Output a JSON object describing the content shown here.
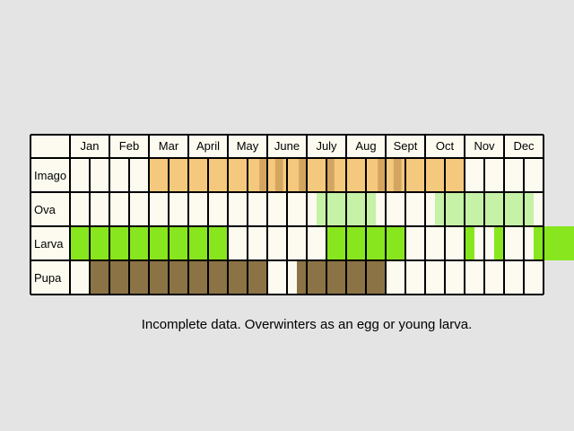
{
  "chart_data": {
    "type": "table",
    "months": [
      "Jan",
      "Feb",
      "Mar",
      "April",
      "May",
      "June",
      "July",
      "Aug",
      "Sept",
      "Oct",
      "Nov",
      "Dec"
    ],
    "rows": [
      {
        "label": "Imago",
        "color": "#f5c97d",
        "periods": [
          [
            2.0,
            10.0
          ]
        ],
        "shade_color": "#b8874a",
        "shade_periods": [
          [
            4.8,
            5.0
          ],
          [
            5.2,
            5.4
          ],
          [
            5.8,
            6.0
          ],
          [
            6.5,
            6.7
          ],
          [
            7.8,
            8.0
          ],
          [
            8.2,
            8.4
          ]
        ]
      },
      {
        "label": "Ova",
        "color": "#c5f2a6",
        "periods": [
          [
            6.25,
            7.75
          ],
          [
            9.25,
            11.75
          ]
        ]
      },
      {
        "label": "Larva",
        "color": "#88e61e",
        "periods": [
          [
            0.0,
            4.0
          ],
          [
            6.5,
            8.5
          ],
          [
            10.0,
            10.25
          ],
          [
            10.75,
            11.0
          ],
          [
            11.75,
            13.0
          ]
        ]
      },
      {
        "label": "Pupa",
        "color": "#8b7346",
        "periods": [
          [
            0.5,
            5.0
          ],
          [
            5.75,
            8.0
          ]
        ]
      }
    ]
  },
  "note": "Incomplete data. Overwinters as an egg or young larva.",
  "colors": {
    "background": "#e4e4e4",
    "cell": "#fdfbf0",
    "grid": "#000000"
  }
}
